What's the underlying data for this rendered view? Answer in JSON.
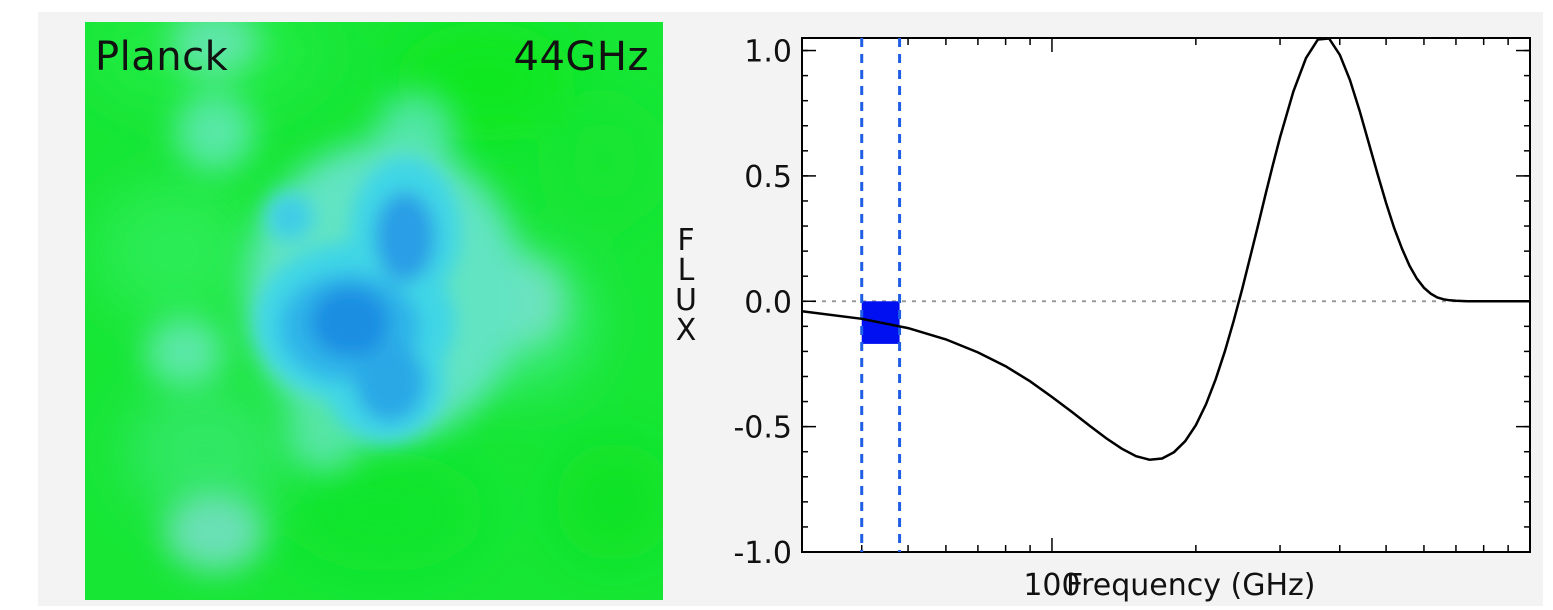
{
  "map": {
    "instrument": "Planck",
    "band": "44GHz"
  },
  "chart_data": {
    "type": "line",
    "xlabel": "Frequency (GHz)",
    "ylabel": "FLUX",
    "xscale": "log",
    "xlim": [
      30,
      1000
    ],
    "ylim": [
      -1.0,
      1.05
    ],
    "x_tick_labels": [
      {
        "value": 100,
        "label": "100"
      }
    ],
    "y_ticks": [
      -1.0,
      -0.5,
      0.0,
      0.5,
      1.0
    ],
    "y_tick_labels": [
      "-1.0",
      "-0.5",
      "0.0",
      "0.5",
      "1.0"
    ],
    "series": [
      {
        "x": [
          30,
          40,
          50,
          60,
          70,
          80,
          90,
          100,
          110,
          120,
          130,
          140,
          150,
          160,
          170,
          180,
          190,
          200,
          210,
          220,
          230,
          240,
          250,
          260,
          270,
          280,
          290,
          300,
          320,
          340,
          360,
          380,
          400,
          420,
          440,
          460,
          480,
          500,
          520,
          540,
          560,
          580,
          600,
          620,
          640,
          660,
          680,
          700,
          720,
          740,
          760,
          780,
          800,
          820,
          840,
          860,
          880,
          900,
          920,
          940,
          960,
          980,
          1000
        ],
        "y": [
          -0.04,
          -0.07,
          -0.107,
          -0.152,
          -0.204,
          -0.259,
          -0.319,
          -0.382,
          -0.441,
          -0.497,
          -0.547,
          -0.588,
          -0.618,
          -0.632,
          -0.627,
          -0.602,
          -0.558,
          -0.494,
          -0.411,
          -0.311,
          -0.199,
          -0.078,
          0.049,
          0.178,
          0.305,
          0.429,
          0.546,
          0.653,
          0.837,
          0.97,
          1.044,
          1.048,
          0.983,
          0.883,
          0.76,
          0.631,
          0.507,
          0.392,
          0.292,
          0.209,
          0.141,
          0.09,
          0.054,
          0.03,
          0.015,
          0.008,
          0.004,
          0.002,
          0.001,
          0.0,
          0.0,
          0.0,
          0.0,
          0.0,
          0.0,
          0.0,
          0.0,
          0.0,
          0.0,
          0.0,
          0.0,
          0.0,
          0.0
        ]
      }
    ],
    "band": {
      "x_range": [
        40,
        48
      ],
      "y_range": [
        -0.17,
        0.0
      ]
    },
    "zero_line": 0.0,
    "colors": {
      "band": "#0010f0",
      "band_edges": "#1f5fe6",
      "curve": "#000000",
      "zero_line": "#9a9a9a"
    }
  }
}
